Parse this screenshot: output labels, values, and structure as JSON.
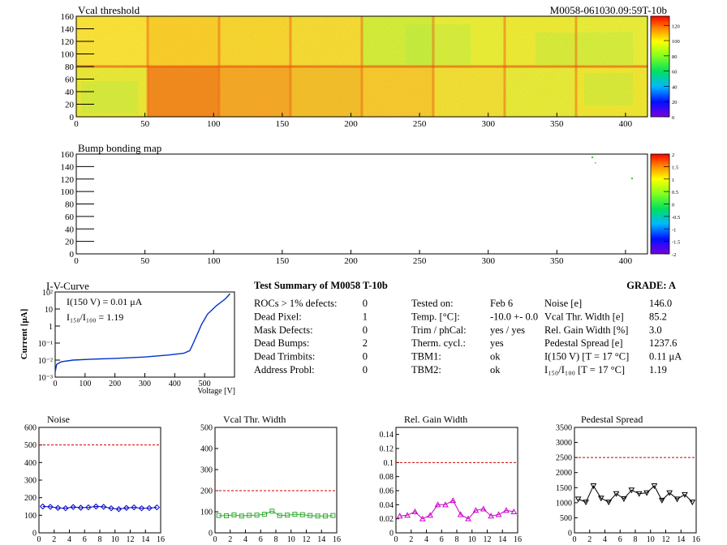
{
  "header": {
    "id": "M0058-061030.09:59T-10b"
  },
  "maps": [
    {
      "title": "Vcal threshold",
      "xticks": [
        0,
        50,
        100,
        150,
        200,
        250,
        300,
        350,
        400
      ],
      "yticks": [
        0,
        20,
        40,
        60,
        80,
        100,
        120,
        140,
        160
      ],
      "colorbar": [
        0,
        20,
        40,
        60,
        80,
        100,
        120
      ]
    },
    {
      "title": "Bump bonding map",
      "xticks": [
        0,
        50,
        100,
        150,
        200,
        250,
        300,
        350,
        400
      ],
      "yticks": [
        0,
        20,
        40,
        60,
        80,
        100,
        120,
        140,
        160
      ],
      "colorbar": [
        "-2",
        "-1.5",
        "-1",
        "-0.5",
        "0",
        "0.5",
        "1",
        "1.5",
        "2"
      ]
    }
  ],
  "iv": {
    "title": "I-V-Curve",
    "ylabel": "Current [μA]",
    "xlabel": "Voltage [V]",
    "xticks": [
      0,
      100,
      200,
      300,
      400,
      500
    ],
    "yticks": [
      "10²",
      "10",
      "1",
      "10⁻¹",
      "10⁻²",
      "10⁻³"
    ],
    "legend1": "I(150 V) = 0.01 μA",
    "legend2": "I₁₅₀/I₁₀₀ =  1.19"
  },
  "summary": {
    "title": "Test Summary of M0058    T-10b",
    "grade": "GRADE:  A",
    "left": [
      {
        "label": "ROCs > 1% defects:",
        "value": "0"
      },
      {
        "label": "Dead Pixel:",
        "value": "1"
      },
      {
        "label": "Mask Defects:",
        "value": "0"
      },
      {
        "label": "Dead Bumps:",
        "value": "2"
      },
      {
        "label": "Dead Trimbits:",
        "value": "0"
      },
      {
        "label": "Address Probl:",
        "value": "0"
      }
    ],
    "mid": [
      {
        "label": "Tested on:",
        "value": "Feb 6"
      },
      {
        "label": "Temp. [°C]:",
        "value": "-10.0 +- 0.0"
      },
      {
        "label": "Trim / phCal:",
        "value": "yes / yes"
      },
      {
        "label": "Therm. cycl.:",
        "value": "yes"
      },
      {
        "label": "TBM1:",
        "value": "ok"
      },
      {
        "label": "TBM2:",
        "value": "ok"
      }
    ],
    "right": [
      {
        "label": "Noise [e]",
        "value": "146.0"
      },
      {
        "label": "Vcal Thr. Width [e]",
        "value": "85.2"
      },
      {
        "label": "Rel. Gain Width [%]",
        "value": "3.0"
      },
      {
        "label": "Pedestal Spread [e]",
        "value": "1237.6"
      },
      {
        "label": "I(150 V) [T = 17 °C]",
        "value": "0.11 μA"
      },
      {
        "label": "I₁₅₀/I₁₀₀  [T = 17 °C]",
        "value": "1.19"
      }
    ]
  },
  "chart_data": [
    {
      "type": "scatter",
      "title": "Noise",
      "xlim": [
        0,
        16
      ],
      "ylim": [
        0,
        600
      ],
      "threshold": 500,
      "xticks": [
        0,
        2,
        4,
        6,
        8,
        10,
        12,
        14,
        16
      ],
      "yticks": [
        0,
        100,
        200,
        300,
        400,
        500,
        600
      ],
      "x": [
        0,
        1,
        2,
        3,
        4,
        5,
        6,
        7,
        8,
        9,
        10,
        11,
        12,
        13,
        14,
        15
      ],
      "values": [
        150,
        148,
        142,
        140,
        147,
        143,
        145,
        150,
        148,
        140,
        135,
        142,
        145,
        140,
        141,
        145
      ],
      "color": "#0000cc",
      "marker": "diamond"
    },
    {
      "type": "scatter",
      "title": "Vcal Thr. Width",
      "xlim": [
        0,
        16
      ],
      "ylim": [
        0,
        500
      ],
      "threshold": 200,
      "xticks": [
        0,
        2,
        4,
        6,
        8,
        10,
        12,
        14,
        16
      ],
      "yticks": [
        0,
        100,
        200,
        300,
        400,
        500
      ],
      "x": [
        0,
        1,
        2,
        3,
        4,
        5,
        6,
        7,
        8,
        9,
        10,
        11,
        12,
        13,
        14,
        15
      ],
      "values": [
        82,
        81,
        85,
        80,
        83,
        84,
        88,
        103,
        82,
        84,
        88,
        86,
        82,
        80,
        80,
        82
      ],
      "color": "#33aa33",
      "marker": "square"
    },
    {
      "type": "scatter",
      "title": "Rel. Gain Width",
      "xlim": [
        0,
        16
      ],
      "ylim": [
        0,
        0.15
      ],
      "threshold": 0.1,
      "xticks": [
        0,
        2,
        4,
        6,
        8,
        10,
        12,
        14,
        16
      ],
      "yticks": [
        0,
        0.02,
        0.04,
        0.06,
        0.08,
        0.1,
        0.12,
        0.14
      ],
      "x": [
        0,
        1,
        2,
        3,
        4,
        5,
        6,
        7,
        8,
        9,
        10,
        11,
        12,
        13,
        14,
        15
      ],
      "values": [
        0.024,
        0.025,
        0.03,
        0.02,
        0.025,
        0.04,
        0.04,
        0.046,
        0.026,
        0.02,
        0.032,
        0.034,
        0.024,
        0.026,
        0.032,
        0.03
      ],
      "color": "#cc00cc",
      "marker": "triangle"
    },
    {
      "type": "scatter",
      "title": "Pedestal Spread",
      "xlim": [
        0,
        16
      ],
      "ylim": [
        0,
        3500
      ],
      "threshold": 2500,
      "xticks": [
        0,
        2,
        4,
        6,
        8,
        10,
        12,
        14,
        16
      ],
      "yticks": [
        0,
        500,
        1000,
        1500,
        2000,
        2500,
        3000,
        3500
      ],
      "x": [
        0,
        1,
        2,
        3,
        4,
        5,
        6,
        7,
        8,
        9,
        10,
        11,
        12,
        13,
        14,
        15
      ],
      "values": [
        1120,
        1020,
        1560,
        1150,
        1020,
        1300,
        1130,
        1420,
        1300,
        1330,
        1560,
        1080,
        1330,
        1120,
        1270,
        1020
      ],
      "color": "#000000",
      "marker": "triangle-down"
    }
  ],
  "colors": {
    "threshold": "#cc0000",
    "iv": "#0033cc"
  }
}
